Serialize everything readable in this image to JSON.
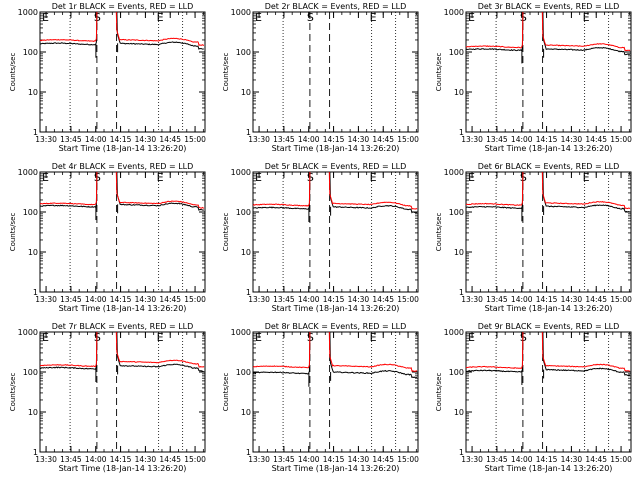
{
  "figure": {
    "time_ticks": [
      "13:30",
      "13:45",
      "14:00",
      "14:15",
      "14:30",
      "14:45",
      "15:00"
    ],
    "y_ticks": [
      "1",
      "10",
      "100",
      "1000"
    ],
    "y_label": "Counts/sec",
    "x_label": "Start Time (18-Jan-14 13:26:20)",
    "marker_labels": [
      "E",
      "S",
      "E"
    ],
    "colors": {
      "events": "#000000",
      "lld": "#ff0000"
    }
  },
  "chart_data": [
    {
      "title": "Det 1r BLACK = Events, RED = LLD",
      "type": "line",
      "ylim": [
        1,
        1000
      ],
      "yscale": "log",
      "series": [
        {
          "name": "Events",
          "pre": 160,
          "post": 165
        },
        {
          "name": "LLD",
          "pre": 195,
          "post": 205
        }
      ]
    },
    {
      "title": "Det 2r BLACK = Events, RED = LLD",
      "type": "line",
      "ylim": [
        1,
        1000
      ],
      "yscale": "log",
      "series": [
        {
          "name": "Events",
          "pre": null,
          "post": null
        },
        {
          "name": "LLD",
          "pre": null,
          "post": null
        }
      ]
    },
    {
      "title": "Det 3r BLACK = Events, RED = LLD",
      "type": "line",
      "ylim": [
        1,
        1000
      ],
      "yscale": "log",
      "series": [
        {
          "name": "Events",
          "pre": 115,
          "post": 120
        },
        {
          "name": "LLD",
          "pre": 135,
          "post": 150
        }
      ]
    },
    {
      "title": "Det 4r BLACK = Events, RED = LLD",
      "type": "line",
      "ylim": [
        1,
        1000
      ],
      "yscale": "log",
      "series": [
        {
          "name": "Events",
          "pre": 140,
          "post": 155
        },
        {
          "name": "LLD",
          "pre": 160,
          "post": 175
        }
      ]
    },
    {
      "title": "Det 5r BLACK = Events, RED = LLD",
      "type": "line",
      "ylim": [
        1,
        1000
      ],
      "yscale": "log",
      "series": [
        {
          "name": "Events",
          "pre": 125,
          "post": 135
        },
        {
          "name": "LLD",
          "pre": 150,
          "post": 165
        }
      ]
    },
    {
      "title": "Det 6r BLACK = Events, RED = LLD",
      "type": "line",
      "ylim": [
        1,
        1000
      ],
      "yscale": "log",
      "series": [
        {
          "name": "Events",
          "pre": 130,
          "post": 140
        },
        {
          "name": "LLD",
          "pre": 155,
          "post": 170
        }
      ]
    },
    {
      "title": "Det 7r BLACK = Events, RED = LLD",
      "type": "line",
      "ylim": [
        1,
        1000
      ],
      "yscale": "log",
      "series": [
        {
          "name": "Events",
          "pre": 125,
          "post": 145
        },
        {
          "name": "LLD",
          "pre": 145,
          "post": 185
        }
      ]
    },
    {
      "title": "Det 8r BLACK = Events, RED = LLD",
      "type": "line",
      "ylim": [
        1,
        1000
      ],
      "yscale": "log",
      "series": [
        {
          "name": "Events",
          "pre": 95,
          "post": 100
        },
        {
          "name": "LLD",
          "pre": 135,
          "post": 145
        }
      ]
    },
    {
      "title": "Det 9r BLACK = Events, RED = LLD",
      "type": "line",
      "ylim": [
        1,
        1000
      ],
      "yscale": "log",
      "series": [
        {
          "name": "Events",
          "pre": 105,
          "post": 115
        },
        {
          "name": "LLD",
          "pre": 130,
          "post": 145
        }
      ]
    }
  ]
}
